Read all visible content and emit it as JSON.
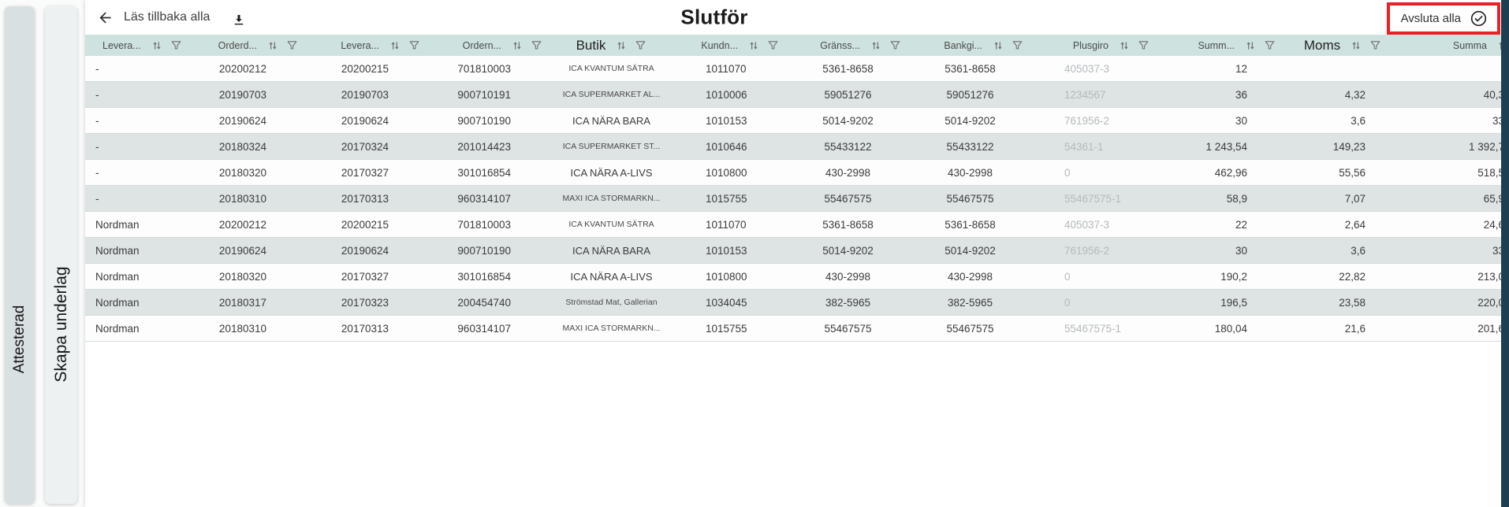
{
  "side_tabs": [
    {
      "label": "Attesterad"
    },
    {
      "label": "Skapa underlag"
    }
  ],
  "toolbar": {
    "back_label": "Läs tillbaka alla",
    "title": "Slutför",
    "finish_all_label": "Avsluta alla",
    "icons": [
      "arrow-left",
      "download",
      "check-circle"
    ]
  },
  "table": {
    "columns": [
      {
        "label": "Levera...",
        "emphasis": false
      },
      {
        "label": "Orderd...",
        "emphasis": false
      },
      {
        "label": "Levera...",
        "emphasis": false
      },
      {
        "label": "Ordern...",
        "emphasis": false
      },
      {
        "label": "Butik",
        "emphasis": true
      },
      {
        "label": "Kundn...",
        "emphasis": false
      },
      {
        "label": "Gränss...",
        "emphasis": false
      },
      {
        "label": "Bankgi...",
        "emphasis": false
      },
      {
        "label": "Plusgiro",
        "emphasis": false
      },
      {
        "label": "Summ...",
        "emphasis": false
      },
      {
        "label": "Moms",
        "emphasis": true
      },
      {
        "label": "Summa",
        "emphasis": false
      }
    ],
    "rows": [
      [
        "-",
        "20200212",
        "20200215",
        "701810003",
        "ICA KVANTUM SÄTRA",
        "1011070",
        "5361-8658",
        "5361-8658",
        "405037-3",
        "12",
        "",
        ""
      ],
      [
        "-",
        "20190703",
        "20190703",
        "900710191",
        "ICA SUPERMARKET AL...",
        "1010006",
        "59051276",
        "59051276",
        "1234567",
        "36",
        "4,32",
        "40,3"
      ],
      [
        "-",
        "20190624",
        "20190624",
        "900710190",
        "ICA NÄRA BARA",
        "1010153",
        "5014-9202",
        "5014-9202",
        "761956-2",
        "30",
        "3,6",
        "33"
      ],
      [
        "-",
        "20180324",
        "20170324",
        "201014423",
        "ICA SUPERMARKET ST...",
        "1010646",
        "55433122",
        "55433122",
        "54361-1",
        "1 243,54",
        "149,23",
        "1 392,7"
      ],
      [
        "-",
        "20180320",
        "20170327",
        "301016854",
        "ICA NÄRA A-LIVS",
        "1010800",
        "430-2998",
        "430-2998",
        "0",
        "462,96",
        "55,56",
        "518,5"
      ],
      [
        "-",
        "20180310",
        "20170313",
        "960314107",
        "MAXI ICA STORMARKN...",
        "1015755",
        "55467575",
        "55467575",
        "55467575-1",
        "58,9",
        "7,07",
        "65,9"
      ],
      [
        "Nordman",
        "20200212",
        "20200215",
        "701810003",
        "ICA KVANTUM SÄTRA",
        "1011070",
        "5361-8658",
        "5361-8658",
        "405037-3",
        "22",
        "2,64",
        "24,6"
      ],
      [
        "Nordman",
        "20190624",
        "20190624",
        "900710190",
        "ICA NÄRA BARA",
        "1010153",
        "5014-9202",
        "5014-9202",
        "761956-2",
        "30",
        "3,6",
        "33"
      ],
      [
        "Nordman",
        "20180320",
        "20170327",
        "301016854",
        "ICA NÄRA A-LIVS",
        "1010800",
        "430-2998",
        "430-2998",
        "0",
        "190,2",
        "22,82",
        "213,0"
      ],
      [
        "Nordman",
        "20180317",
        "20170323",
        "200454740",
        "Strömstad Mat, Gallerian",
        "1034045",
        "382-5965",
        "382-5965",
        "0",
        "196,5",
        "23,58",
        "220,0"
      ],
      [
        "Nordman",
        "20180310",
        "20170313",
        "960314107",
        "MAXI ICA STORMARKN...",
        "1015755",
        "55467575",
        "55467575",
        "55467575-1",
        "180,04",
        "21,6",
        "201,6"
      ]
    ]
  },
  "colors": {
    "highlight_red": "#ec1f27",
    "header_bg": "#cee2df",
    "stripe_bg": "#dee3e4",
    "tab1_bg": "#d9e0e1",
    "tab2_bg": "#eef1f2",
    "dark_edge": "#1e3e52",
    "muted_text": "#b4babb"
  }
}
